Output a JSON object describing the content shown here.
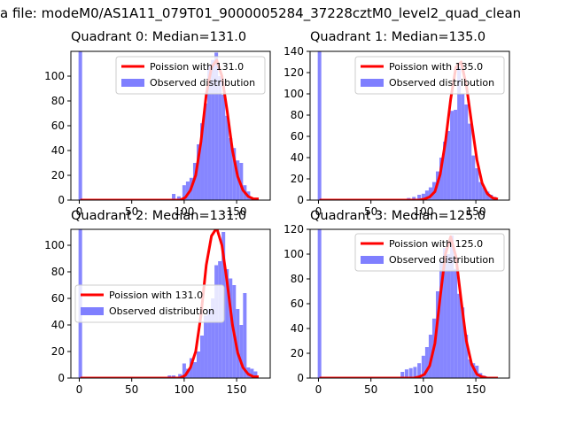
{
  "figure_title": "a file: modeM0/AS1A11_079T01_9000005284_37228cztM0_level2_quad_clean",
  "chart_data": [
    {
      "type": "bar",
      "title": "Quadrant 0: Median=131.0",
      "median": 131.0,
      "xlim": [
        -8,
        182
      ],
      "ylim": [
        0,
        120
      ],
      "xticks": [
        0,
        50,
        100,
        150
      ],
      "yticks": [
        0,
        20,
        40,
        60,
        80,
        100
      ],
      "legend_position": "upper right",
      "legend": [
        "Poission with 131.0",
        "Observed distribution"
      ],
      "series": [
        {
          "name": "Poission with 131.0",
          "kind": "line",
          "color": "#ff0000",
          "lambda": 131.0,
          "x": [
            1,
            96,
            101,
            106,
            111,
            116,
            121,
            126,
            131,
            136,
            141,
            146,
            151,
            156,
            161,
            166,
            171
          ],
          "values": [
            0,
            0,
            2,
            8,
            20,
            47,
            85,
            107,
            113,
            100,
            72,
            40,
            19,
            8,
            3,
            1,
            1
          ]
        },
        {
          "name": "Observed distribution",
          "kind": "histogram",
          "color": "#7f7fff",
          "bin_width": 3.4,
          "x": [
            1,
            90,
            95,
            100,
            103.4,
            106.8,
            110.2,
            113.6,
            117,
            120.4,
            123.8,
            127.2,
            130.6,
            134,
            137.4,
            140.8,
            144.2,
            147.6,
            151,
            154.4,
            157.8,
            161.2,
            164.6,
            168
          ],
          "values": [
            120,
            5,
            3,
            12,
            15,
            18,
            30,
            45,
            62,
            78,
            108,
            113,
            119,
            100,
            85,
            68,
            50,
            42,
            32,
            30,
            12,
            7,
            2,
            1
          ]
        }
      ]
    },
    {
      "type": "bar",
      "title": "Quadrant 1: Median=135.0",
      "median": 135.0,
      "xlim": [
        -8,
        182
      ],
      "ylim": [
        0,
        140
      ],
      "xticks": [
        0,
        50,
        100,
        150
      ],
      "yticks": [
        0,
        20,
        40,
        60,
        80,
        100,
        120,
        140
      ],
      "legend_position": "upper right",
      "legend": [
        "Poission with 135.0",
        "Observed distribution"
      ],
      "series": [
        {
          "name": "Poission with 135.0",
          "kind": "line",
          "color": "#ff0000",
          "lambda": 135.0,
          "x": [
            1,
            96,
            101,
            106,
            111,
            116,
            121,
            126,
            131,
            136,
            141,
            146,
            151,
            156,
            161,
            166,
            171
          ],
          "values": [
            0,
            0,
            1,
            3,
            8,
            24,
            55,
            95,
            125,
            130,
            108,
            72,
            38,
            16,
            6,
            2,
            1
          ]
        },
        {
          "name": "Observed distribution",
          "kind": "histogram",
          "color": "#7f7fff",
          "bin_width": 3.4,
          "x": [
            1,
            86,
            91,
            96,
            100,
            103.4,
            106.8,
            110.2,
            113.6,
            117,
            120.4,
            123.8,
            127.2,
            130.6,
            134,
            137.4,
            140.8,
            144.2,
            147.6,
            151,
            154.4,
            157.8,
            161.2,
            164.6,
            168
          ],
          "values": [
            140,
            2,
            3,
            5,
            6,
            9,
            12,
            17,
            27,
            40,
            55,
            65,
            84,
            85,
            125,
            100,
            90,
            72,
            42,
            30,
            17,
            12,
            8,
            5,
            3
          ]
        }
      ]
    },
    {
      "type": "bar",
      "title": "Quadrant 2: Median=131.0",
      "median": 131.0,
      "xlim": [
        -8,
        182
      ],
      "ylim": [
        0,
        112
      ],
      "xticks": [
        0,
        50,
        100,
        150
      ],
      "yticks": [
        0,
        20,
        40,
        60,
        80,
        100
      ],
      "legend_position": "center left",
      "legend": [
        "Poission with 131.0",
        "Observed distribution"
      ],
      "series": [
        {
          "name": "Poission with 131.0",
          "kind": "line",
          "color": "#ff0000",
          "lambda": 131.0,
          "x": [
            1,
            96,
            101,
            106,
            111,
            116,
            121,
            126,
            131,
            136,
            141,
            146,
            151,
            156,
            161,
            166,
            171
          ],
          "values": [
            0,
            0,
            2,
            8,
            20,
            47,
            85,
            107,
            113,
            100,
            72,
            40,
            19,
            8,
            3,
            1,
            1
          ]
        },
        {
          "name": "Observed distribution",
          "kind": "histogram",
          "color": "#7f7fff",
          "bin_width": 3.4,
          "x": [
            1,
            30,
            45,
            58,
            72,
            80,
            86,
            90,
            96,
            100,
            103.4,
            106.8,
            110.2,
            113.6,
            117,
            120.4,
            123.8,
            127.2,
            130.6,
            134,
            137.4,
            140.8,
            144.2,
            147.6,
            151,
            154.4,
            157.8,
            161.2,
            164.6,
            168
          ],
          "values": [
            112,
            1,
            1,
            1,
            1,
            1,
            2,
            2,
            3,
            11,
            7,
            15,
            12,
            20,
            32,
            47,
            52,
            60,
            85,
            88,
            110,
            82,
            75,
            70,
            52,
            40,
            64,
            8,
            7,
            5
          ]
        }
      ]
    },
    {
      "type": "bar",
      "title": "Quadrant 3: Median=125.0",
      "median": 125.0,
      "xlim": [
        -8,
        182
      ],
      "ylim": [
        0,
        120
      ],
      "xticks": [
        0,
        50,
        100,
        150
      ],
      "yticks": [
        0,
        20,
        40,
        60,
        80,
        100,
        120
      ],
      "legend_position": "upper right",
      "legend": [
        "Poission with 125.0",
        "Observed distribution"
      ],
      "series": [
        {
          "name": "Poission with 125.0",
          "kind": "line",
          "color": "#ff0000",
          "lambda": 125.0,
          "x": [
            1,
            86,
            91,
            96,
            101,
            106,
            111,
            116,
            121,
            126,
            131,
            136,
            141,
            146,
            151,
            156,
            161,
            166,
            171
          ],
          "values": [
            0,
            0,
            0,
            1,
            3,
            10,
            28,
            65,
            100,
            114,
            98,
            63,
            30,
            11,
            3,
            1,
            0,
            0,
            0
          ]
        },
        {
          "name": "Observed distribution",
          "kind": "histogram",
          "color": "#7f7fff",
          "bin_width": 3.4,
          "x": [
            1,
            80,
            84,
            88,
            92,
            96,
            100,
            103.4,
            106.8,
            110.2,
            113.6,
            117,
            120.4,
            123.8,
            127.2,
            130.6,
            134,
            137.4,
            140.8,
            144.2,
            147.6,
            151,
            154.4,
            157.8
          ],
          "values": [
            120,
            5,
            7,
            8,
            9,
            12,
            18,
            25,
            35,
            48,
            70,
            95,
            105,
            100,
            115,
            88,
            68,
            57,
            35,
            15,
            12,
            10,
            4,
            2
          ]
        }
      ]
    }
  ]
}
